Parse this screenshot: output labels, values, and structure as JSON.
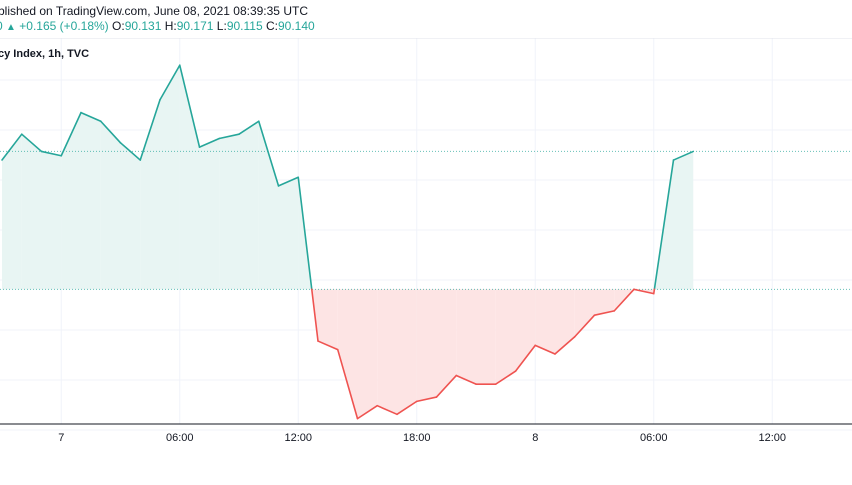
{
  "header": {
    "published_text": "blished on TradingView.com, June 08, 2021 08:39:35 UTC",
    "ohlc": {
      "change_prefix": "0",
      "change": "+0.165 (+0.18%)",
      "o_label": "O:",
      "o_value": "90.131",
      "h_label": "H:",
      "h_value": "90.171",
      "l_label": "L:",
      "l_value": "90.115",
      "c_label": "C:",
      "c_value": "90.140"
    }
  },
  "chart_title": "cy Index, 1h, TVC",
  "chart_data": {
    "type": "area",
    "baseline_note": "baseline chart: segments above baseline teal, below red",
    "colors": {
      "up_line": "#26a69a",
      "up_fill": "#e8f5f3",
      "down_line": "#ef5350",
      "down_fill": "#fde4e4",
      "grid": "#f0f3fa",
      "axis": "#131722"
    },
    "x_ticks": [
      "7",
      "06:00",
      "12:00",
      "18:00",
      "8",
      "06:00",
      "12:00"
    ],
    "x_tick_index": [
      3,
      9,
      15,
      21,
      27,
      33,
      39
    ],
    "baseline": 89.98,
    "last_value": 90.14,
    "ylim": [
      89.84,
      90.26
    ],
    "values": [
      90.13,
      90.16,
      90.14,
      90.135,
      90.185,
      90.175,
      90.15,
      90.13,
      90.2,
      90.24,
      90.145,
      90.155,
      90.16,
      90.175,
      90.1,
      90.11,
      89.92,
      89.91,
      89.83,
      89.845,
      89.835,
      89.85,
      89.855,
      89.88,
      89.87,
      89.87,
      89.885,
      89.915,
      89.905,
      89.925,
      89.95,
      89.955,
      89.98,
      89.975,
      90.13,
      90.14
    ]
  }
}
